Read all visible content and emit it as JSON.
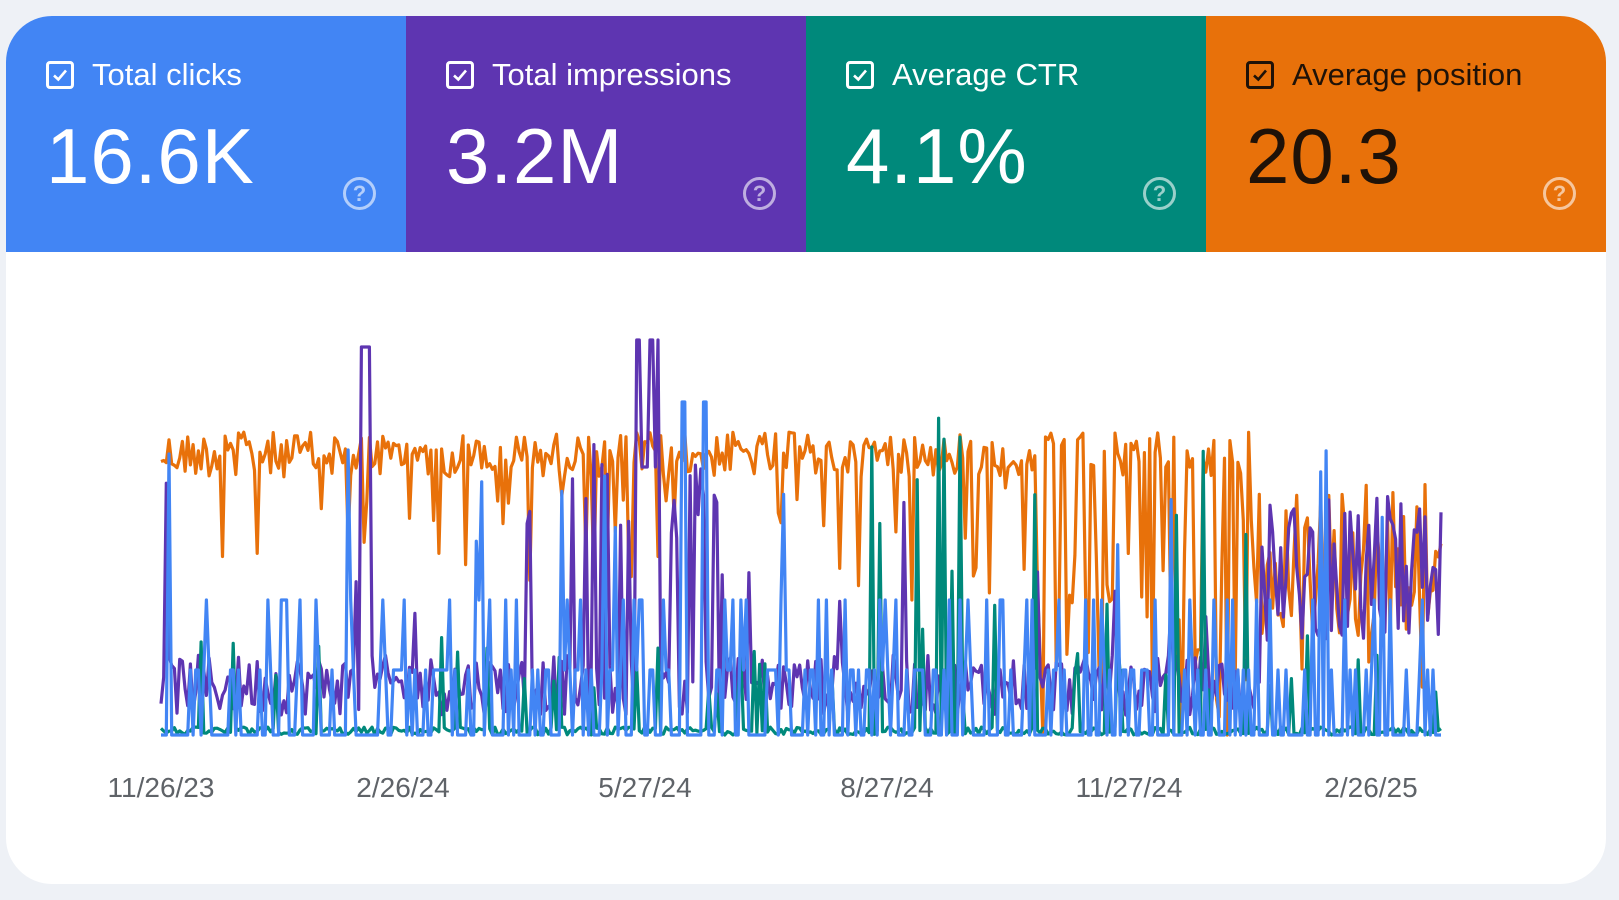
{
  "metrics": [
    {
      "label": "Total clicks",
      "value": "16.6K",
      "color": "#4285f4",
      "checked": true,
      "help_icon": "help-circle-icon"
    },
    {
      "label": "Total impressions",
      "value": "3.2M",
      "color": "#5e35b1",
      "checked": true,
      "help_icon": "help-circle-icon"
    },
    {
      "label": "Average CTR",
      "value": "4.1%",
      "color": "#00897b",
      "checked": true,
      "help_icon": "help-circle-icon"
    },
    {
      "label": "Average position",
      "value": "20.3",
      "color": "#e8710a",
      "checked": true,
      "help_icon": "help-circle-icon"
    }
  ],
  "chart_data": {
    "type": "line",
    "x_tick_labels": [
      "11/26/23",
      "2/26/24",
      "5/27/24",
      "8/27/24",
      "11/27/24",
      "2/26/25"
    ],
    "x_range": [
      "11/26/23",
      "3/15/25"
    ],
    "axes_visible": false,
    "grid": false,
    "series": [
      {
        "name": "Average position",
        "color": "#e8710a",
        "pattern": "high, noisy; deep dips late 2024 to early 2025"
      },
      {
        "name": "Total impressions",
        "color": "#5e35b1",
        "pattern": "low baseline with large spikes around 2/26/24 and 5/27/24; rising in 2025"
      },
      {
        "name": "Average CTR",
        "color": "#00897b",
        "pattern": "mostly near zero with sharp spikes, largest in Nov–Dec 2024"
      },
      {
        "name": "Total clicks",
        "color": "#4285f4",
        "pattern": "near zero with frequent spikes throughout"
      }
    ]
  }
}
